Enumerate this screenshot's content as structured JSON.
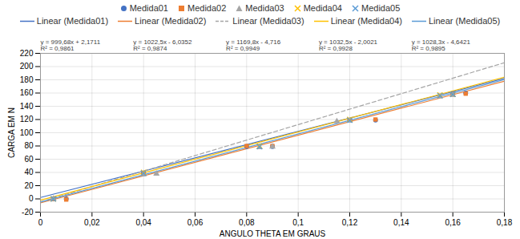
{
  "chart_data": {
    "type": "scatter",
    "xlabel": "ANGULO THETA EM GRAUS",
    "ylabel": "CARGA EM N",
    "xlim": [
      0,
      0.18
    ],
    "ylim": [
      -20,
      220
    ],
    "xticks": [
      0,
      {
        "value": 0.02,
        "label": "0,02"
      },
      {
        "value": 0.04,
        "label": "0,04"
      },
      {
        "value": 0.06,
        "label": "0,06"
      },
      {
        "value": 0.08,
        "label": "0,08"
      },
      {
        "value": 0.1,
        "label": "0,1"
      },
      {
        "value": 0.12,
        "label": "0,12"
      },
      {
        "value": 0.14,
        "label": "0,14"
      },
      {
        "value": 0.16,
        "label": "0,16"
      },
      {
        "value": 0.18,
        "label": "0,18"
      }
    ],
    "yticks": [
      -20,
      0,
      20,
      40,
      60,
      80,
      100,
      120,
      140,
      160,
      180,
      200,
      220
    ],
    "grid": true,
    "series": [
      {
        "name": "Medida01",
        "type": "scatter",
        "color": "#4472C4",
        "marker": "circle",
        "x": [
          0.005,
          0.01,
          0.04,
          0.04,
          0.08,
          0.09,
          0.12,
          0.13,
          0.16,
          0.165
        ],
        "values": [
          0,
          0,
          38,
          39,
          79,
          79,
          119,
          119,
          159,
          160
        ]
      },
      {
        "name": "Medida02",
        "type": "scatter",
        "color": "#ED7D31",
        "marker": "square",
        "x": [
          0.005,
          0.01,
          0.04,
          0.08,
          0.09,
          0.12,
          0.13,
          0.16,
          0.165
        ],
        "values": [
          0,
          -1,
          39,
          80,
          80,
          119,
          120,
          158,
          159
        ]
      },
      {
        "name": "Medida03",
        "type": "scatter",
        "color": "#A5A5A5",
        "marker": "triangle",
        "x": [
          0.005,
          0.04,
          0.045,
          0.085,
          0.09,
          0.115,
          0.12,
          0.155,
          0.16
        ],
        "values": [
          0,
          37,
          38,
          78,
          79,
          117,
          118,
          155,
          157
        ]
      },
      {
        "name": "Medida04",
        "type": "scatter",
        "color": "#FFC000",
        "marker": "cross",
        "x": [
          0.005,
          0.04,
          0.085,
          0.12,
          0.155,
          0.16
        ],
        "values": [
          0,
          40,
          80,
          120,
          157,
          158
        ]
      },
      {
        "name": "Medida05",
        "type": "scatter",
        "color": "#5B9BD5",
        "marker": "cross",
        "x": [
          0.005,
          0.04,
          0.085,
          0.12,
          0.155,
          0.16
        ],
        "values": [
          0,
          39,
          79,
          119,
          156,
          158
        ]
      },
      {
        "name": "Linear (Medida01)",
        "type": "line",
        "color": "#4472C4",
        "line_style": "solid",
        "x": [
          0,
          0.18
        ],
        "values": [
          2.1711,
          182.1135
        ]
      },
      {
        "name": "Linear (Medida02)",
        "type": "line",
        "color": "#ED7D31",
        "line_style": "solid",
        "x": [
          0,
          0.18
        ],
        "values": [
          -6.0352,
          178.0148
        ]
      },
      {
        "name": "Linear (Medida03)",
        "type": "line",
        "color": "#A5A5A5",
        "line_style": "dashed",
        "x": [
          0,
          0.18
        ],
        "values": [
          -4.716,
          205.848
        ]
      },
      {
        "name": "Linear (Medida04)",
        "type": "line",
        "color": "#FFC000",
        "line_style": "solid",
        "x": [
          0,
          0.18
        ],
        "values": [
          -2.0021,
          183.8479
        ]
      },
      {
        "name": "Linear (Medida05)",
        "type": "line",
        "color": "#5B9BD5",
        "line_style": "solid",
        "x": [
          0,
          0.18
        ],
        "values": [
          -4.6421,
          180.4519
        ]
      }
    ],
    "annotations": [
      "y = 999,68x + 2,1711\nR² = 0,9861",
      "y = 1022,5x - 6,0352\nR² = 0,9874",
      "y = 1169,8x - 4,716\nR² = 0,9949",
      "y = 1032,5x - 2,0021\nR² = 0,9928",
      "y = 1028,3x - 4,6421\nR² = 0,9895"
    ]
  }
}
